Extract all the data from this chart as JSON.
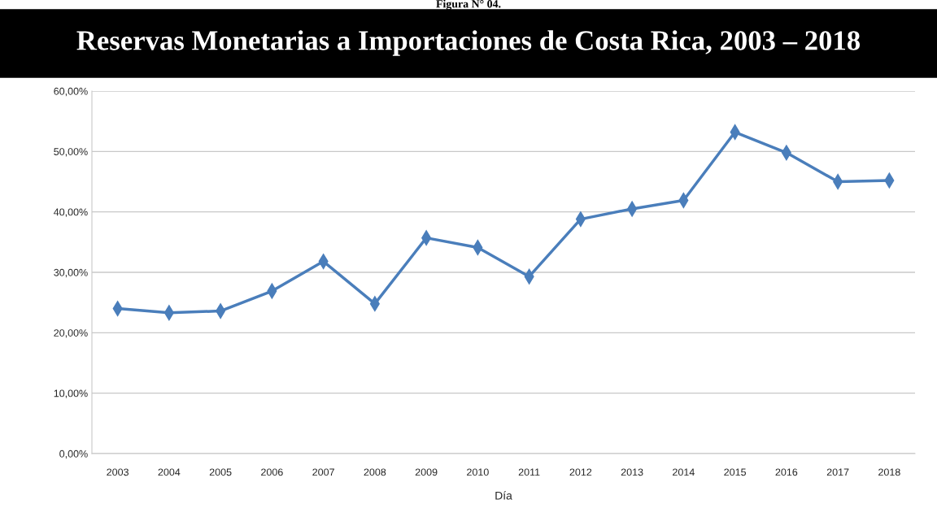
{
  "chart_data": {
    "type": "line",
    "title": "Reservas Monetarias a Importaciones de Costa Rica, 2003 – 2018",
    "xlabel": "Día",
    "annotations": [
      "Figura N° 04."
    ],
    "categories": [
      "2003",
      "2004",
      "2005",
      "2006",
      "2007",
      "2008",
      "2009",
      "2010",
      "2011",
      "2012",
      "2013",
      "2014",
      "2015",
      "2016",
      "2017",
      "2018"
    ],
    "series": [
      {
        "color": "#4a7ebb",
        "values": [
          24.0,
          23.3,
          23.6,
          26.9,
          31.8,
          24.8,
          35.7,
          34.1,
          29.3,
          38.8,
          40.5,
          41.9,
          53.2,
          49.8,
          45.0,
          45.2
        ]
      }
    ],
    "ylim": [
      0,
      60
    ],
    "yticks": [
      {
        "value": 0,
        "label": "0,00%"
      },
      {
        "value": 10,
        "label": "10,00%"
      },
      {
        "value": 20,
        "label": "20,00%"
      },
      {
        "value": 30,
        "label": "30,00%"
      },
      {
        "value": 40,
        "label": "40,00%"
      },
      {
        "value": 50,
        "label": "50,00%"
      },
      {
        "value": 60,
        "label": "60,00%"
      }
    ],
    "grid": "y",
    "marker": "diamond",
    "line_style": "solid",
    "legend": false
  }
}
